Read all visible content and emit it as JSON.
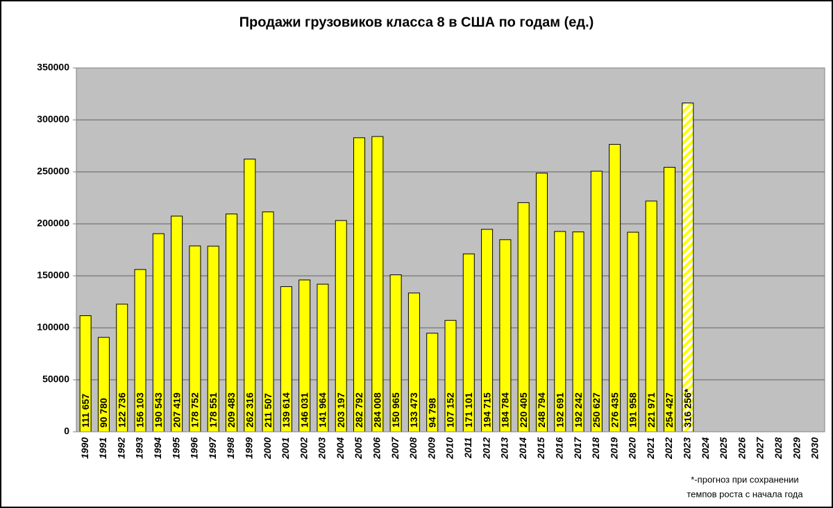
{
  "chart_data": {
    "type": "bar",
    "title": "Продажи грузовиков класса 8 в США по годам (ед.)",
    "categories": [
      "1990",
      "1991",
      "1992",
      "1993",
      "1994",
      "1995",
      "1996",
      "1997",
      "1998",
      "1999",
      "2000",
      "2001",
      "2002",
      "2003",
      "2004",
      "2005",
      "2006",
      "2007",
      "2008",
      "2009",
      "2010",
      "2011",
      "2012",
      "2013",
      "2014",
      "2015",
      "2016",
      "2017",
      "2018",
      "2019",
      "2020",
      "2021",
      "2022",
      "2023",
      "2024",
      "2025",
      "2026",
      "2027",
      "2028",
      "2029",
      "2030"
    ],
    "values": [
      111657,
      90780,
      122736,
      156103,
      190543,
      207419,
      178752,
      178551,
      209483,
      262316,
      211507,
      139614,
      146031,
      141964,
      203197,
      282792,
      284008,
      150965,
      133473,
      94798,
      107152,
      171101,
      194715,
      184784,
      220405,
      248794,
      192691,
      192242,
      250627,
      276435,
      191958,
      221971,
      254427,
      316256,
      null,
      null,
      null,
      null,
      null,
      null,
      null
    ],
    "value_labels": [
      "111 657",
      "90 780",
      "122 736",
      "156 103",
      "190 543",
      "207 419",
      "178 752",
      "178 551",
      "209 483",
      "262 316",
      "211 507",
      "139 614",
      "146 031",
      "141 964",
      "203 197",
      "282 792",
      "284 008",
      "150 965",
      "133 473",
      "94 798",
      "107 152",
      "171 101",
      "194 715",
      "184 784",
      "220 405",
      "248 794",
      "192 691",
      "192 242",
      "250 627",
      "276 435",
      "191 958",
      "221 971",
      "254 427",
      "316 256*",
      null,
      null,
      null,
      null,
      null,
      null,
      null
    ],
    "hatched": [
      false,
      false,
      false,
      false,
      false,
      false,
      false,
      false,
      false,
      false,
      false,
      false,
      false,
      false,
      false,
      false,
      false,
      false,
      false,
      false,
      false,
      false,
      false,
      false,
      false,
      false,
      false,
      false,
      false,
      false,
      false,
      false,
      false,
      true,
      false,
      false,
      false,
      false,
      false,
      false,
      false
    ],
    "color": "#ffff00",
    "ylim": [
      0,
      350000
    ],
    "yticks": [
      0,
      50000,
      100000,
      150000,
      200000,
      250000,
      300000,
      350000
    ],
    "grid": true,
    "note_lines": [
      "*-прогноз при сохранении",
      "темпов роста с начала года"
    ]
  }
}
